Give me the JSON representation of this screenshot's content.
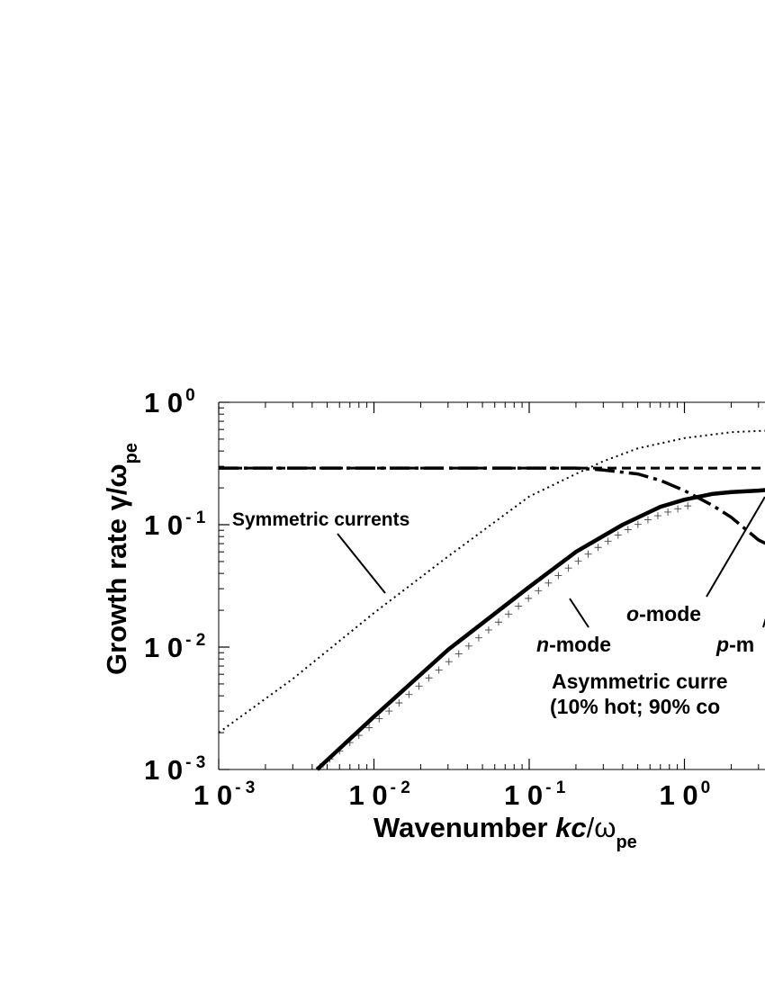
{
  "chart_data": {
    "type": "line",
    "x_scale": "log",
    "y_scale": "log",
    "xlim": [
      0.001,
      5
    ],
    "ylim": [
      0.001,
      1
    ],
    "xlabel": {
      "main": "Wavenumber ",
      "italic": "kc",
      "rest": "/ω",
      "sub": "pe"
    },
    "ylabel": {
      "main": "Growth rate γ/ω",
      "sub": "pe"
    },
    "x_ticks": [
      {
        "value": 0.001,
        "base": "1 0",
        "exp": "- 3"
      },
      {
        "value": 0.01,
        "base": "1 0",
        "exp": "- 2"
      },
      {
        "value": 0.1,
        "base": "1 0",
        "exp": "- 1"
      },
      {
        "value": 1,
        "base": "1 0",
        "exp": "0"
      }
    ],
    "y_ticks": [
      {
        "value": 1,
        "base": "1 0",
        "exp": "0"
      },
      {
        "value": 0.1,
        "base": "1 0",
        "exp": "- 1"
      },
      {
        "value": 0.01,
        "base": "1 0",
        "exp": "- 2"
      },
      {
        "value": 0.001,
        "base": "1 0",
        "exp": "- 3"
      }
    ],
    "series": [
      {
        "key": "symmetric",
        "style": "dotted",
        "x": [
          0.001,
          0.003,
          0.01,
          0.03,
          0.1,
          0.2,
          0.3,
          0.5,
          1,
          2,
          5
        ],
        "y": [
          0.002,
          0.0055,
          0.019,
          0.055,
          0.17,
          0.26,
          0.33,
          0.42,
          0.51,
          0.57,
          0.6
        ]
      },
      {
        "key": "o-mode",
        "style": "dash-dot",
        "x": [
          0.001,
          0.01,
          0.1,
          0.2,
          0.3,
          0.5,
          0.7,
          1,
          1.5,
          2,
          3,
          4
        ],
        "y": [
          0.29,
          0.29,
          0.29,
          0.29,
          0.28,
          0.26,
          0.23,
          0.19,
          0.145,
          0.115,
          0.075,
          0.063
        ]
      },
      {
        "key": "p-mode",
        "style": "dashed",
        "x": [
          0.001,
          0.01,
          0.1,
          1,
          5
        ],
        "y": [
          0.29,
          0.29,
          0.29,
          0.29,
          0.29
        ]
      },
      {
        "key": "n-mode",
        "style": "solid-thick",
        "x": [
          0.0043,
          0.01,
          0.03,
          0.1,
          0.2,
          0.4,
          0.7,
          1,
          1.5,
          2,
          3,
          5
        ],
        "y": [
          0.001,
          0.0027,
          0.0095,
          0.031,
          0.06,
          0.1,
          0.14,
          0.16,
          0.178,
          0.185,
          0.19,
          0.2
        ]
      }
    ],
    "markers": {
      "symbol": "+",
      "x": [
        0.0045,
        0.0052,
        0.006,
        0.007,
        0.008,
        0.0093,
        0.0108,
        0.0125,
        0.0145,
        0.0168,
        0.0195,
        0.0226,
        0.0262,
        0.0304,
        0.0352,
        0.0408,
        0.0473,
        0.0548,
        0.0635,
        0.0736,
        0.0853,
        0.0989,
        0.1147,
        0.133,
        0.154,
        0.179,
        0.207,
        0.24,
        0.278,
        0.322,
        0.374,
        0.433,
        0.502,
        0.582,
        0.674,
        0.782,
        0.906,
        1.05
      ],
      "y": [
        0.00105,
        0.00122,
        0.00142,
        0.00166,
        0.0019,
        0.0022,
        0.0026,
        0.003,
        0.0035,
        0.0041,
        0.0048,
        0.0056,
        0.0065,
        0.0076,
        0.0088,
        0.0102,
        0.0119,
        0.0138,
        0.016,
        0.0186,
        0.0216,
        0.025,
        0.0289,
        0.0334,
        0.0384,
        0.0442,
        0.0505,
        0.0575,
        0.0652,
        0.0734,
        0.0822,
        0.0913,
        0.1005,
        0.1096,
        0.1184,
        0.1268,
        0.1348,
        0.1424
      ]
    },
    "annotations": {
      "symmetric": "Symmetric currents",
      "o_mode": {
        "italic": "o",
        "rest": "-mode"
      },
      "n_mode": {
        "italic": "n",
        "rest": "-mode"
      },
      "p_mode": {
        "italic": "p",
        "rest": "-m"
      },
      "asym_line1": "Asymmetric curre",
      "asym_line2": "(10% hot; 90% co"
    }
  }
}
